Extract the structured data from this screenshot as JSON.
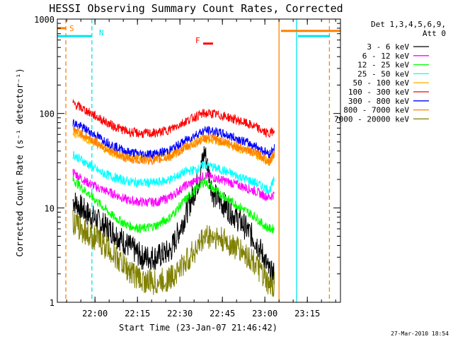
{
  "page": {
    "title": "HESSI Observing Summary Count Rates, Corrected",
    "footer_date": "27-Mar-2010 18:54"
  },
  "chart_data": {
    "type": "line",
    "title": "HESSI Observing Summary Count Rates, Corrected",
    "xlabel": "Start Time (23-Jan-07 21:46:42)",
    "ylabel": "Corrected Count Rate (s⁻¹ detector⁻¹)",
    "y_scale": "log",
    "ylim": [
      1,
      1000
    ],
    "xlim_minutes": [
      0,
      100
    ],
    "x_ticks": [
      {
        "label": "22:00",
        "minutes": 13.3
      },
      {
        "label": "22:15",
        "minutes": 28.3
      },
      {
        "label": "22:30",
        "minutes": 43.3
      },
      {
        "label": "22:45",
        "minutes": 58.3
      },
      {
        "label": "23:00",
        "minutes": 73.3
      },
      {
        "label": "23:15",
        "minutes": 88.3
      }
    ],
    "y_ticks": [
      {
        "label": "1",
        "value": 1
      },
      {
        "label": "10",
        "value": 10
      },
      {
        "label": "100",
        "value": 100
      },
      {
        "label": "1000",
        "value": 1000
      }
    ],
    "legend": {
      "header_line1": "Det 1,3,4,5,6,9,",
      "header_line2": "Att 0",
      "placement": "right"
    },
    "flags": [
      {
        "label": "S",
        "color": "#ff8000",
        "start": 0,
        "end": 3,
        "level": 800
      },
      {
        "label": "N",
        "color": "#00e5ee",
        "start": 0,
        "end": 12.2,
        "level": 660
      },
      {
        "label": "S",
        "color": "#ff8000",
        "start": 79,
        "end": 100,
        "level": 750
      },
      {
        "label": "N",
        "color": "#00e5ee",
        "start": 85,
        "end": 96,
        "level": 660
      },
      {
        "label": "F",
        "color": "#ff0000",
        "start": 51.5,
        "end": 55,
        "level": 550
      }
    ],
    "vertical_markers": [
      {
        "minutes": 3.0,
        "color": "#ff8000",
        "style": "dashed"
      },
      {
        "minutes": 12.2,
        "color": "#00e5ee",
        "style": "dashed"
      },
      {
        "minutes": 78.3,
        "color": "#ff8000",
        "style": "solid"
      },
      {
        "minutes": 84.5,
        "color": "#00e5ee",
        "style": "solid"
      },
      {
        "minutes": 96.1,
        "color": "#ff8000",
        "style": "dashed"
      }
    ],
    "x": [
      5.5,
      10,
      15,
      20,
      25,
      30,
      35,
      40,
      45,
      50,
      52,
      55,
      60,
      65,
      70,
      73,
      75,
      76.7
    ],
    "series": [
      {
        "name": "3 - 6 keV",
        "color": "#000000",
        "values": [
          12,
          9,
          7,
          5.5,
          4,
          3,
          3,
          3.5,
          8,
          20,
          40,
          14,
          10,
          7,
          4.5,
          3,
          2,
          2
        ]
      },
      {
        "name": "6 - 12 keV",
        "color": "#ff00ff",
        "values": [
          24,
          19,
          16,
          14,
          12,
          11.5,
          11.5,
          13,
          17,
          20,
          22,
          21,
          19,
          17,
          15,
          13.5,
          13,
          14
        ]
      },
      {
        "name": "12 - 25 keV",
        "color": "#00ff00",
        "values": [
          20,
          15,
          11,
          8,
          6.5,
          6,
          6.5,
          8,
          12,
          17,
          19,
          16,
          12.5,
          10,
          8,
          6.5,
          6,
          6
        ]
      },
      {
        "name": "25 - 50 keV",
        "color": "#00ffff",
        "values": [
          37,
          30,
          24,
          21,
          19,
          18.5,
          18.5,
          20,
          24,
          26,
          29,
          27,
          24,
          21,
          18.5,
          16.5,
          15.5,
          20
        ]
      },
      {
        "name": "50 - 100 keV",
        "color": "#ffb400",
        "values": [
          63,
          55,
          45,
          38,
          34,
          33,
          33,
          36,
          44,
          51,
          54,
          53,
          48,
          42,
          37,
          33,
          31,
          38
        ]
      },
      {
        "name": "100 - 300 keV",
        "color": "#ff0000",
        "values": [
          128,
          108,
          88,
          73,
          64,
          61,
          62,
          68,
          82,
          96,
          100,
          99,
          92,
          82,
          72,
          64,
          60,
          70
        ]
      },
      {
        "name": "300 - 800 keV",
        "color": "#0000ff",
        "values": [
          80,
          68,
          55,
          45,
          39,
          37,
          37.5,
          41,
          51,
          62,
          66,
          65,
          59,
          52,
          45,
          40,
          37,
          45
        ]
      },
      {
        "name": "800 - 7000 keV",
        "color": "#ff8000",
        "values": [
          68,
          58,
          47,
          38,
          33,
          32,
          32,
          35,
          43,
          51,
          55,
          54,
          49,
          43,
          38,
          34,
          31,
          38
        ]
      },
      {
        "name": "7000 - 20000 keV",
        "color": "#808000",
        "values": [
          7,
          5.5,
          4.5,
          3.2,
          2.2,
          1.7,
          1.6,
          1.8,
          2.6,
          4,
          5,
          5,
          4.3,
          3.5,
          2.6,
          1.8,
          1.4,
          1.6
        ]
      }
    ]
  }
}
